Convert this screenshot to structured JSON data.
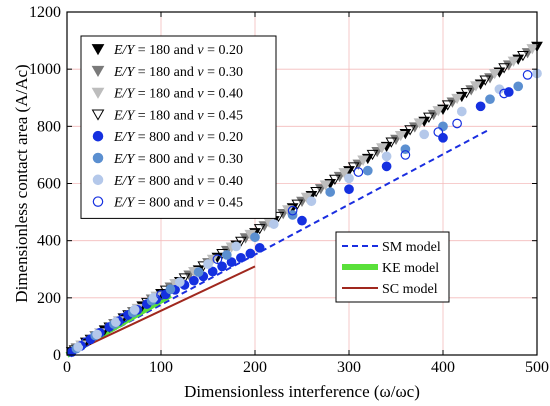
{
  "chart_data": {
    "type": "scatter",
    "xlabel": "Dimensionless interference (ω/ωc)",
    "ylabel": "Dimensionless contact area (A/Ac)",
    "xlim": [
      0,
      500
    ],
    "ylim": [
      0,
      1200
    ],
    "x_ticks": [
      0,
      100,
      200,
      300,
      400,
      500
    ],
    "y_ticks": [
      0,
      200,
      400,
      600,
      800,
      1000,
      1200
    ],
    "grid": true,
    "legend_scatter_position": "top-left",
    "legend_lines_position": "lower-right",
    "scatter_series": [
      {
        "name": "E/Y = 180 and ν = 0.20",
        "label_left": "E/Y",
        "label_mid": " = 180 and ",
        "label_nu": "ν",
        "label_right": " = 0.20",
        "marker": "triangle-down",
        "color": "#000000",
        "filled": true,
        "x": [
          5,
          20,
          40,
          60,
          80,
          100,
          120,
          140,
          160,
          180,
          200,
          220,
          240,
          260,
          280,
          300,
          320,
          340,
          360,
          380,
          400,
          420,
          440,
          460,
          480,
          500
        ],
        "y": [
          12,
          45,
          88,
          130,
          172,
          215,
          257,
          298,
          342,
          385,
          428,
          470,
          515,
          558,
          600,
          645,
          688,
          730,
          775,
          818,
          860,
          905,
          948,
          990,
          1035,
          1080
        ]
      },
      {
        "name": "E/Y = 180 and ν = 0.30",
        "label_left": "E/Y",
        "label_mid": " = 180 and ",
        "label_nu": "ν",
        "label_right": " = 0.30",
        "marker": "triangle-down",
        "color": "#7a7a7a",
        "filled": true,
        "x": [
          10,
          30,
          50,
          70,
          90,
          110,
          130,
          150,
          170,
          190,
          210,
          230,
          250,
          270,
          290,
          310,
          330,
          350,
          370,
          390,
          410,
          430,
          450,
          470,
          490
        ],
        "y": [
          25,
          68,
          110,
          152,
          196,
          238,
          280,
          323,
          366,
          410,
          452,
          495,
          538,
          582,
          625,
          668,
          712,
          755,
          798,
          842,
          885,
          928,
          970,
          1015,
          1058
        ]
      },
      {
        "name": "E/Y = 180 and ν = 0.40",
        "label_left": "E/Y",
        "label_mid": " = 180 and ",
        "label_nu": "ν",
        "label_right": " = 0.40",
        "marker": "triangle-down",
        "color": "#bdbdbd",
        "filled": true,
        "x": [
          15,
          35,
          55,
          75,
          95,
          115,
          135,
          155,
          175,
          195,
          215,
          235,
          255,
          275,
          295,
          315,
          335,
          355,
          375,
          395,
          415,
          435,
          455,
          475,
          495
        ],
        "y": [
          35,
          78,
          120,
          163,
          206,
          250,
          292,
          335,
          378,
          422,
          465,
          508,
          552,
          595,
          638,
          682,
          725,
          768,
          812,
          855,
          898,
          942,
          985,
          1028,
          1072
        ]
      },
      {
        "name": "E/Y = 180 and ν = 0.45",
        "label_left": "E/Y",
        "label_mid": " = 180 and ",
        "label_nu": "ν",
        "label_right": " = 0.45",
        "marker": "triangle-down",
        "color": "#000000",
        "filled": false,
        "x": [
          8,
          25,
          45,
          65,
          85,
          105,
          125,
          145,
          165,
          185,
          205,
          225,
          245,
          265,
          285,
          305,
          325,
          345,
          365,
          385,
          405,
          425,
          445,
          465,
          485
        ],
        "y": [
          18,
          55,
          98,
          141,
          184,
          227,
          270,
          312,
          355,
          398,
          442,
          485,
          528,
          572,
          615,
          658,
          702,
          745,
          788,
          832,
          875,
          918,
          962,
          1005,
          1048
        ]
      },
      {
        "name": "E/Y = 800 and ν = 0.20",
        "label_left": "E/Y",
        "label_mid": " = 800 and ",
        "label_nu": "ν",
        "label_right": " = 0.20",
        "marker": "circle",
        "color": "#1530e0",
        "filled": true,
        "x": [
          5,
          15,
          25,
          35,
          45,
          55,
          65,
          75,
          85,
          95,
          105,
          115,
          125,
          135,
          145,
          155,
          165,
          175,
          185,
          195,
          205,
          250,
          300,
          340,
          400,
          440,
          470
        ],
        "y": [
          10,
          32,
          55,
          78,
          98,
          118,
          140,
          158,
          178,
          195,
          212,
          228,
          245,
          260,
          275,
          292,
          310,
          325,
          340,
          355,
          375,
          470,
          580,
          660,
          760,
          870,
          920
        ]
      },
      {
        "name": "E/Y = 800 and ν = 0.30",
        "label_left": "E/Y",
        "label_mid": " = 800 and ",
        "label_nu": "ν",
        "label_right": " = 0.30",
        "marker": "circle",
        "color": "#5b8fd0",
        "filled": true,
        "x": [
          10,
          30,
          50,
          70,
          90,
          110,
          140,
          170,
          200,
          240,
          280,
          320,
          360,
          400,
          450,
          480
        ],
        "y": [
          22,
          68,
          108,
          148,
          190,
          230,
          290,
          350,
          412,
          490,
          570,
          645,
          720,
          800,
          895,
          940
        ]
      },
      {
        "name": "E/Y = 800 and ν = 0.40",
        "label_left": "E/Y",
        "label_mid": " = 800 and ",
        "label_nu": "ν",
        "label_right": " = 0.40",
        "marker": "circle",
        "color": "#b4c8ea",
        "filled": true,
        "x": [
          12,
          32,
          52,
          72,
          92,
          120,
          150,
          180,
          220,
          260,
          300,
          340,
          380,
          420,
          460,
          500
        ],
        "y": [
          28,
          72,
          115,
          158,
          200,
          255,
          318,
          380,
          458,
          538,
          618,
          695,
          772,
          852,
          930,
          985
        ]
      },
      {
        "name": "E/Y = 800 and ν = 0.45",
        "label_left": "E/Y",
        "label_mid": " = 800 and ",
        "label_nu": "ν",
        "label_right": " = 0.45",
        "marker": "circle",
        "color": "#1530e0",
        "filled": false,
        "x": [
          20,
          60,
          100,
          160,
          240,
          310,
          360,
          395,
          415,
          465,
          490
        ],
        "y": [
          45,
          130,
          210,
          335,
          505,
          640,
          700,
          780,
          810,
          915,
          980
        ]
      }
    ],
    "line_series": [
      {
        "name": "SM model",
        "style": "dashed",
        "color": "#1a2ee0",
        "width": 2,
        "x": [
          0,
          450
        ],
        "y": [
          0,
          790
        ]
      },
      {
        "name": "KE model",
        "style": "solid",
        "color": "#59e03a",
        "width": 6,
        "x": [
          0,
          110
        ],
        "y": [
          0,
          210
        ]
      },
      {
        "name": "SC model",
        "style": "solid",
        "color": "#a0281e",
        "width": 2,
        "x": [
          0,
          200
        ],
        "y": [
          0,
          310
        ]
      }
    ]
  }
}
